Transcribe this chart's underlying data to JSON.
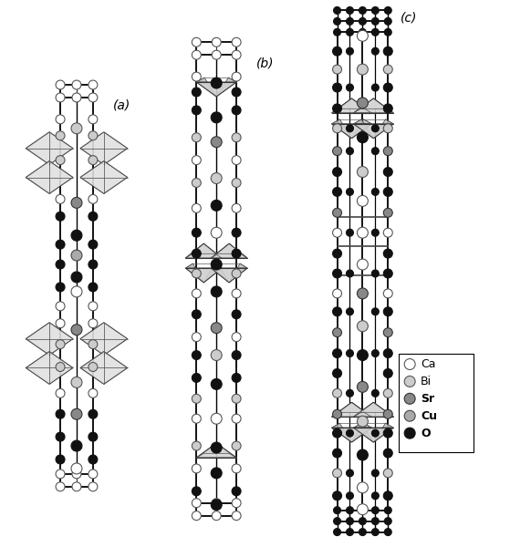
{
  "bg": "#ffffff",
  "lw_frame": 1.4,
  "lw_spine": 1.2,
  "atom_colors": {
    "Ca": [
      "#ffffff",
      "#555555"
    ],
    "Bi": [
      "#cccccc",
      "#555555"
    ],
    "Sr": [
      "#888888",
      "#333333"
    ],
    "Cu": [
      "#aaaaaa",
      "#444444"
    ],
    "O": [
      "#111111",
      "#111111"
    ]
  },
  "labels": {
    "a": "(a)",
    "b": "(b)",
    "c": "(c)"
  },
  "legend_items": [
    "Ca",
    "Bi",
    "Sr",
    "Cu",
    "O"
  ]
}
